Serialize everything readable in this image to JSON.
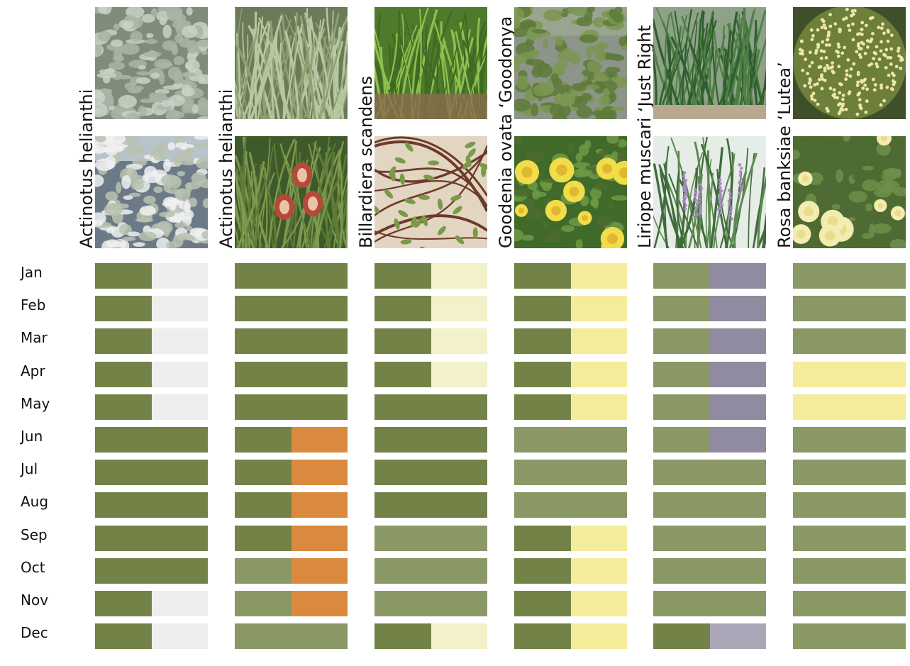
{
  "chart_data": {
    "type": "table",
    "title": "",
    "months": [
      "Jan",
      "Feb",
      "Mar",
      "Apr",
      "May",
      "Jun",
      "Jul",
      "Aug",
      "Sep",
      "Oct",
      "Nov",
      "Dec"
    ],
    "palette": {
      "G": "#738348",
      "L": "#8a9866",
      "W": "#eeeeee",
      "C": "#f2f1c9",
      "Y": "#f5ec9b",
      "O": "#da8a3e",
      "P": "#908ba0",
      "Q": "#aba6b7"
    },
    "plants": [
      {
        "name": "Actinotus helianthi",
        "photos": [
          "silver-grey-foliage-photo",
          "white-flowering-shrub-photo"
        ],
        "months": [
          [
            "G",
            "W"
          ],
          [
            "G",
            "W"
          ],
          [
            "G",
            "W"
          ],
          [
            "G",
            "W"
          ],
          [
            "G",
            "W"
          ],
          [
            "G"
          ],
          [
            "G"
          ],
          [
            "G"
          ],
          [
            "G"
          ],
          [
            "G"
          ],
          [
            "G",
            "W"
          ],
          [
            "G",
            "W"
          ]
        ]
      },
      {
        "name": "Actinotus helianthi",
        "photos": [
          "grass-tussock-photo",
          "red-banksia-cone-photo"
        ],
        "months": [
          [
            "G"
          ],
          [
            "G"
          ],
          [
            "G"
          ],
          [
            "G"
          ],
          [
            "G"
          ],
          [
            "G",
            "O"
          ],
          [
            "G",
            "O"
          ],
          [
            "G",
            "O"
          ],
          [
            "G",
            "O"
          ],
          [
            "L",
            "O"
          ],
          [
            "L",
            "O"
          ],
          [
            "L"
          ]
        ]
      },
      {
        "name": "Billardiera scandens",
        "photos": [
          "green-groundcover-photo",
          "twining-vine-photo"
        ],
        "months": [
          [
            "G",
            "C"
          ],
          [
            "G",
            "C"
          ],
          [
            "G",
            "C"
          ],
          [
            "G",
            "C"
          ],
          [
            "G"
          ],
          [
            "G"
          ],
          [
            "G"
          ],
          [
            "G"
          ],
          [
            "L"
          ],
          [
            "L"
          ],
          [
            "L"
          ],
          [
            "G",
            "C"
          ]
        ]
      },
      {
        "name": "Goodenia ovata ‘Goodonya",
        "photos": [
          "green-shrub-photo",
          "yellow-flowers-photo"
        ],
        "months": [
          [
            "G",
            "Y"
          ],
          [
            "G",
            "Y"
          ],
          [
            "G",
            "Y"
          ],
          [
            "G",
            "Y"
          ],
          [
            "G",
            "Y"
          ],
          [
            "L"
          ],
          [
            "L"
          ],
          [
            "L"
          ],
          [
            "G",
            "Y"
          ],
          [
            "G",
            "Y"
          ],
          [
            "G",
            "Y"
          ],
          [
            "G",
            "Y"
          ]
        ]
      },
      {
        "name": "Liriope muscari ‘Just Right",
        "photos": [
          "strappy-leaf-clump-photo",
          "purple-flower-spikes-photo"
        ],
        "months": [
          [
            "L",
            "P"
          ],
          [
            "L",
            "P"
          ],
          [
            "L",
            "P"
          ],
          [
            "L",
            "P"
          ],
          [
            "L",
            "P"
          ],
          [
            "L",
            "P"
          ],
          [
            "L"
          ],
          [
            "L"
          ],
          [
            "L"
          ],
          [
            "L"
          ],
          [
            "L"
          ],
          [
            "G",
            "Q"
          ]
        ]
      },
      {
        "name": "Rosa banksiae ‘Lutea’",
        "photos": [
          "weeping-rose-bush-photo",
          "yellow-roses-photo"
        ],
        "months": [
          [
            "L"
          ],
          [
            "L"
          ],
          [
            "L"
          ],
          [
            "Y"
          ],
          [
            "Y"
          ],
          [
            "L"
          ],
          [
            "L"
          ],
          [
            "L"
          ],
          [
            "L"
          ],
          [
            "L"
          ],
          [
            "L"
          ],
          [
            "L"
          ]
        ]
      }
    ]
  }
}
